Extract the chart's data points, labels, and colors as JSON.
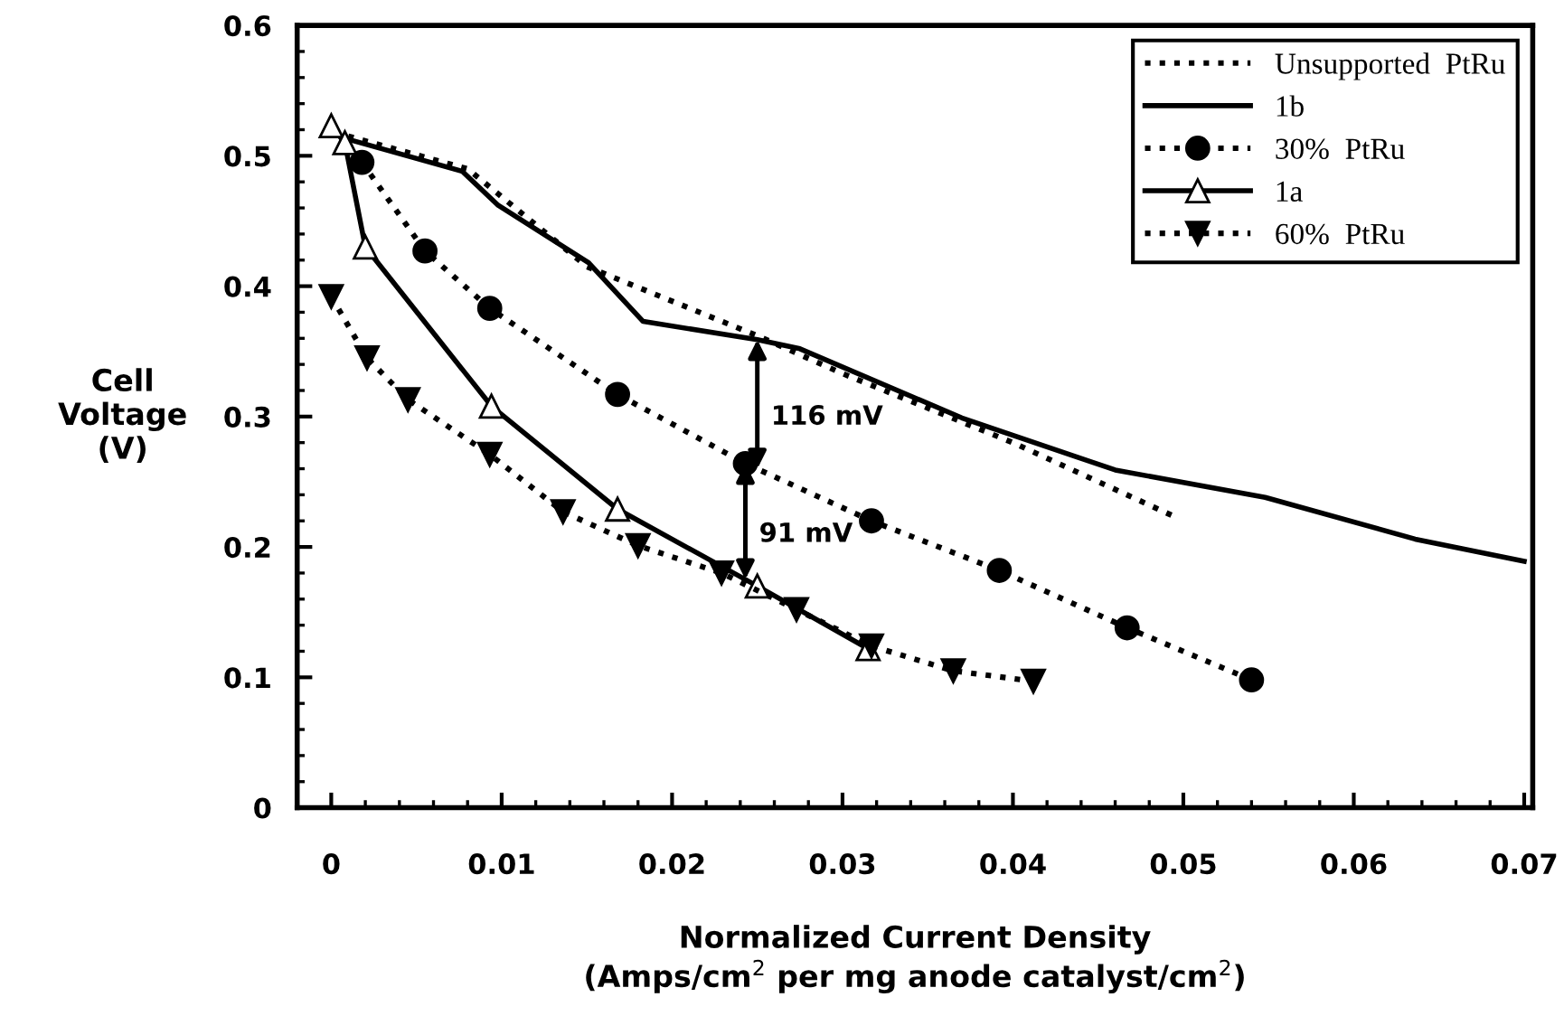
{
  "chart_data": {
    "type": "line",
    "xlabel": "Normalized Current Density\n(Amps/cm$^{2}$ per mg anode catalyst/cm$^{2}$)",
    "ylabel": "Cell\nVoltage\n(V)",
    "xlim": [
      -0.002,
      0.0705
    ],
    "ylim": [
      0,
      0.6
    ],
    "xticks": [
      0,
      0.01,
      0.02,
      0.03,
      0.04,
      0.05,
      0.06,
      0.07
    ],
    "yticks": [
      0,
      0.1,
      0.2,
      0.3,
      0.4,
      0.5,
      0.6
    ],
    "grid": false,
    "legend": "top right",
    "series": [
      {
        "name": "Unsupported  PtRu",
        "color": "#000000",
        "line_style": "dotted",
        "marker": "none",
        "x": [
          0.001,
          0.008,
          0.015,
          0.025,
          0.03,
          0.04,
          0.0497
        ],
        "values": [
          0.515,
          0.49,
          0.415,
          0.362,
          0.333,
          0.28,
          0.222
        ]
      },
      {
        "name": "1b",
        "color": "#000000",
        "line_style": "solid",
        "marker": "none",
        "x": [
          0.0009,
          0.0077,
          0.0098,
          0.0151,
          0.0183,
          0.025,
          0.0275,
          0.037,
          0.046,
          0.0548,
          0.0636,
          0.07
        ],
        "values": [
          0.513,
          0.488,
          0.462,
          0.418,
          0.373,
          0.359,
          0.352,
          0.299,
          0.259,
          0.238,
          0.206,
          0.189
        ]
      },
      {
        "name": "30%  PtRu",
        "color": "#000000",
        "line_style": "dotted",
        "marker": "circle",
        "x": [
          0.0018,
          0.0055,
          0.0093,
          0.0168,
          0.0243,
          0.0317,
          0.0392,
          0.0467,
          0.054
        ],
        "values": [
          0.495,
          0.427,
          0.383,
          0.317,
          0.264,
          0.22,
          0.182,
          0.138,
          0.098
        ]
      },
      {
        "name": "1a",
        "color": "#000000",
        "line_style": "solid",
        "marker": "triangle",
        "x": [
          0,
          0.0008,
          0.002,
          0.0094,
          0.0168,
          0.025,
          0.0315
        ],
        "values": [
          0.523,
          0.51,
          0.43,
          0.308,
          0.229,
          0.17,
          0.122
        ]
      },
      {
        "name": "60%  PtRu",
        "color": "#000000",
        "line_style": "dotted",
        "marker": "triangle_down",
        "x": [
          0,
          0.0021,
          0.0045,
          0.0093,
          0.0136,
          0.018,
          0.0229,
          0.0273,
          0.0317,
          0.0365,
          0.0412
        ],
        "values": [
          0.392,
          0.345,
          0.313,
          0.271,
          0.227,
          0.201,
          0.18,
          0.152,
          0.124,
          0.105,
          0.097
        ]
      }
    ],
    "annotations": [
      {
        "text": "116 mV",
        "x": 0.025,
        "y": 0.359
      },
      {
        "text": "91 mV",
        "x": 0.0243,
        "y": 0.264
      }
    ]
  }
}
